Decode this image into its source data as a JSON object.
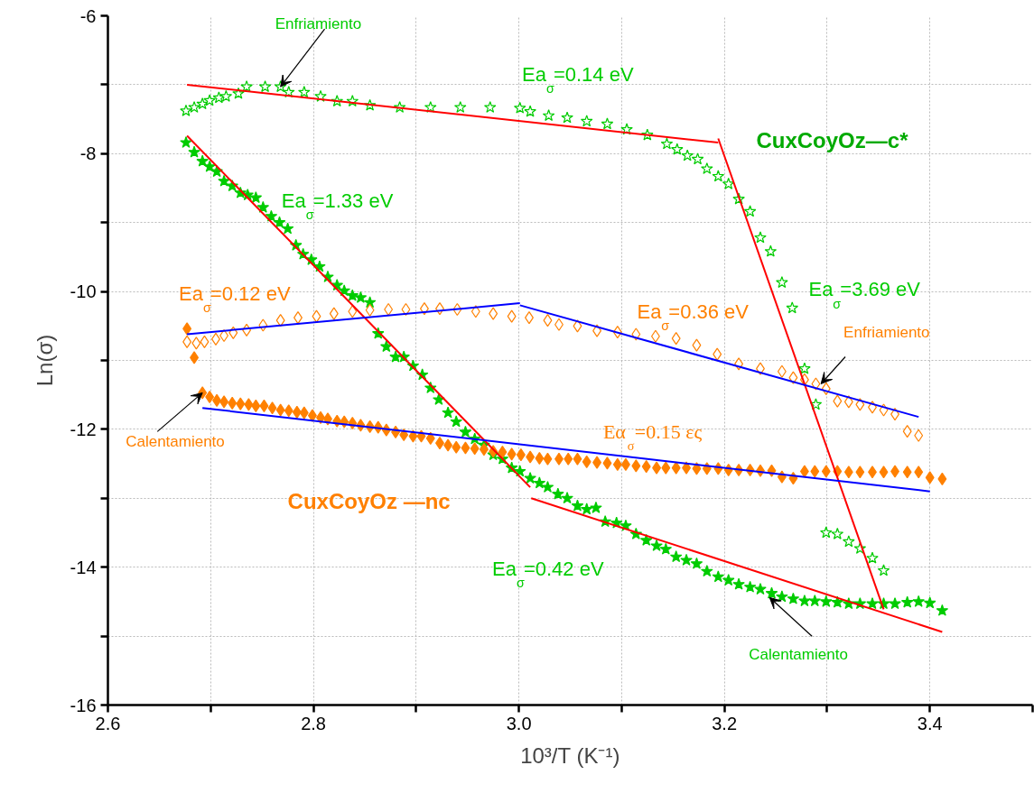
{
  "chart_data": {
    "type": "scatter",
    "xlabel": "10³/T (K⁻¹)",
    "ylabel": "Ln(σ)",
    "xlim": [
      2.6,
      3.5
    ],
    "ylim": [
      -16,
      -6
    ],
    "xticks": [
      2.6,
      {
        "value": 2.7,
        "label": null
      },
      2.8,
      {
        "value": 2.9,
        "label": null
      },
      {
        "value": 3.0,
        "label": "3.0"
      },
      {
        "value": 3.1,
        "label": null
      },
      3.2,
      {
        "value": 3.3,
        "label": null
      },
      3.4,
      {
        "value": 3.5,
        "label": null
      }
    ],
    "yticks": [
      -6,
      {
        "value": -7,
        "label": null
      },
      -8,
      {
        "value": -9,
        "label": null
      },
      -10,
      {
        "value": -11,
        "label": null
      },
      -12,
      {
        "value": -13,
        "label": null
      },
      -14,
      {
        "value": -15,
        "label": null
      },
      -16
    ],
    "grid": true,
    "series": [
      {
        "marker": "star",
        "color": "#00cc00",
        "x": [
          2.676,
          2.684,
          2.692,
          2.699,
          2.708,
          2.715,
          2.727,
          2.735,
          2.753,
          2.768,
          2.776,
          2.791,
          2.807,
          2.823,
          2.838,
          2.855,
          2.884,
          2.914,
          2.943,
          2.972,
          3.001,
          3.011,
          3.029,
          3.047,
          3.066,
          3.086,
          3.105,
          3.125,
          3.144,
          3.154,
          3.164,
          3.174,
          3.183,
          3.194,
          3.204,
          3.214,
          3.225,
          3.235,
          3.245,
          3.256,
          3.266,
          3.278,
          3.289,
          3.299,
          3.31,
          3.321,
          3.332,
          3.344,
          3.355
        ],
        "values": [
          -7.38,
          -7.33,
          -7.28,
          -7.23,
          -7.19,
          -7.17,
          -7.13,
          -7.03,
          -7.03,
          -7.03,
          -7.11,
          -7.11,
          -7.17,
          -7.24,
          -7.24,
          -7.3,
          -7.33,
          -7.33,
          -7.33,
          -7.33,
          -7.34,
          -7.39,
          -7.45,
          -7.48,
          -7.53,
          -7.57,
          -7.65,
          -7.73,
          -7.86,
          -7.94,
          -8.03,
          -8.08,
          -8.22,
          -8.33,
          -8.44,
          -8.66,
          -8.84,
          -9.22,
          -9.42,
          -9.87,
          -10.24,
          -11.12,
          -11.64,
          -13.5,
          -13.52,
          -13.63,
          -13.73,
          -13.87,
          -14.05
        ]
      },
      {
        "marker": "star",
        "color": "#00cc00",
        "x": [
          2.676,
          2.684,
          2.692,
          2.699,
          2.706,
          2.713,
          2.721,
          2.729,
          2.736,
          2.744,
          2.751,
          2.759,
          2.767,
          2.775,
          2.783,
          2.79,
          2.798,
          2.806,
          2.814,
          2.823,
          2.83,
          2.838,
          2.846,
          2.855,
          2.863,
          2.871,
          2.88,
          2.888,
          2.897,
          2.906,
          2.914,
          2.922,
          2.931,
          2.939,
          2.948,
          2.957,
          2.966,
          2.975,
          2.984,
          2.993,
          3.001,
          3.011,
          3.02,
          3.028,
          3.038,
          3.047,
          3.057,
          3.066,
          3.075,
          3.084,
          3.095,
          3.104,
          3.114,
          3.124,
          3.134,
          3.143,
          3.153,
          3.163,
          3.173,
          3.183,
          3.194,
          3.204,
          3.214,
          3.225,
          3.235,
          3.246,
          3.256,
          3.267,
          3.278,
          3.288,
          3.299,
          3.31,
          3.321,
          3.332,
          3.344,
          3.355,
          3.366,
          3.378,
          3.389,
          3.4,
          3.412
        ],
        "values": [
          -7.84,
          -7.98,
          -8.11,
          -8.19,
          -8.26,
          -8.4,
          -8.47,
          -8.57,
          -8.6,
          -8.64,
          -8.78,
          -8.91,
          -9.0,
          -9.09,
          -9.33,
          -9.46,
          -9.54,
          -9.64,
          -9.79,
          -9.91,
          -9.99,
          -10.06,
          -10.09,
          -10.16,
          -10.61,
          -10.8,
          -10.95,
          -10.95,
          -11.08,
          -11.21,
          -11.4,
          -11.57,
          -11.76,
          -11.89,
          -12.04,
          -12.14,
          -12.23,
          -12.37,
          -12.43,
          -12.56,
          -12.61,
          -12.71,
          -12.78,
          -12.84,
          -12.94,
          -13.0,
          -13.11,
          -13.16,
          -13.14,
          -13.34,
          -13.36,
          -13.4,
          -13.52,
          -13.61,
          -13.69,
          -13.74,
          -13.85,
          -13.9,
          -13.95,
          -14.06,
          -14.14,
          -14.19,
          -14.25,
          -14.29,
          -14.32,
          -14.38,
          -14.43,
          -14.46,
          -14.49,
          -14.49,
          -14.5,
          -14.51,
          -14.53,
          -14.53,
          -14.53,
          -14.53,
          -14.53,
          -14.51,
          -14.5,
          -14.52,
          -14.63
        ]
      },
      {
        "marker": "diamond",
        "color": "#ff8000",
        "x": [
          2.677,
          2.686,
          2.694,
          2.705,
          2.713,
          2.722,
          2.735,
          2.751,
          2.768,
          2.785,
          2.803,
          2.82,
          2.838,
          2.855,
          2.873,
          2.89,
          2.908,
          2.923,
          2.94,
          2.958,
          2.975,
          2.993,
          3.01,
          3.028,
          3.039,
          3.057,
          3.076,
          3.096,
          3.114,
          3.133,
          3.153,
          3.173,
          3.193,
          3.214,
          3.235,
          3.256,
          3.267,
          3.278,
          3.289,
          3.299,
          3.31,
          3.321,
          3.332,
          3.344,
          3.355,
          3.366,
          3.378,
          3.389
        ],
        "values": [
          -10.73,
          -10.75,
          -10.73,
          -10.69,
          -10.64,
          -10.6,
          -10.56,
          -10.49,
          -10.42,
          -10.38,
          -10.36,
          -10.32,
          -10.29,
          -10.27,
          -10.26,
          -10.26,
          -10.25,
          -10.25,
          -10.26,
          -10.29,
          -10.32,
          -10.36,
          -10.38,
          -10.42,
          -10.48,
          -10.5,
          -10.57,
          -10.59,
          -10.62,
          -10.65,
          -10.68,
          -10.78,
          -10.91,
          -11.05,
          -11.12,
          -11.16,
          -11.25,
          -11.28,
          -11.34,
          -11.41,
          -11.59,
          -11.6,
          -11.64,
          -11.68,
          -11.72,
          -11.78,
          -12.03,
          -12.09
        ]
      },
      {
        "marker": "diamond",
        "color": "#ff8000",
        "x": [
          2.677,
          2.684,
          2.692,
          2.699,
          2.706,
          2.713,
          2.721,
          2.729,
          2.737,
          2.744,
          2.752,
          2.76,
          2.768,
          2.776,
          2.784,
          2.791,
          2.799,
          2.807,
          2.814,
          2.823,
          2.83,
          2.838,
          2.846,
          2.855,
          2.863,
          2.871,
          2.88,
          2.888,
          2.897,
          2.905,
          2.914,
          2.923,
          2.931,
          2.939,
          2.948,
          2.957,
          2.966,
          2.975,
          2.984,
          2.993,
          3.002,
          3.011,
          3.02,
          3.028,
          3.039,
          3.048,
          3.057,
          3.066,
          3.076,
          3.086,
          3.096,
          3.104,
          3.114,
          3.124,
          3.134,
          3.143,
          3.153,
          3.163,
          3.173,
          3.183,
          3.194,
          3.204,
          3.214,
          3.225,
          3.235,
          3.246,
          3.256,
          3.267,
          3.278,
          3.288,
          3.299,
          3.31,
          3.321,
          3.332,
          3.344,
          3.355,
          3.366,
          3.378,
          3.389,
          3.4,
          3.412
        ],
        "values": [
          -10.54,
          -10.96,
          -11.47,
          -11.53,
          -11.58,
          -11.6,
          -11.62,
          -11.63,
          -11.64,
          -11.66,
          -11.66,
          -11.69,
          -11.72,
          -11.73,
          -11.75,
          -11.76,
          -11.8,
          -11.83,
          -11.85,
          -11.88,
          -11.89,
          -11.91,
          -11.94,
          -11.96,
          -11.97,
          -12.01,
          -12.04,
          -12.08,
          -12.1,
          -12.1,
          -12.13,
          -12.2,
          -12.23,
          -12.26,
          -12.27,
          -12.28,
          -12.29,
          -12.32,
          -12.33,
          -12.36,
          -12.37,
          -12.4,
          -12.42,
          -12.43,
          -12.43,
          -12.43,
          -12.43,
          -12.47,
          -12.48,
          -12.49,
          -12.51,
          -12.51,
          -12.53,
          -12.54,
          -12.56,
          -12.56,
          -12.56,
          -12.56,
          -12.57,
          -12.57,
          -12.57,
          -12.59,
          -12.59,
          -12.59,
          -12.6,
          -12.6,
          -12.69,
          -12.71,
          -12.61,
          -12.61,
          -12.61,
          -12.61,
          -12.62,
          -12.62,
          -12.62,
          -12.62,
          -12.61,
          -12.62,
          -12.62,
          -12.7,
          -12.72
        ]
      },
      {
        "type": "line",
        "color": "#ff0000",
        "x": [
          2.677,
          3.194
        ],
        "values": [
          -7.0,
          -7.84
        ]
      },
      {
        "type": "line",
        "color": "#ff0000",
        "x": [
          3.194,
          3.355
        ],
        "values": [
          -7.78,
          -14.61
        ]
      },
      {
        "type": "line",
        "color": "#ff0000",
        "x": [
          2.677,
          3.011
        ],
        "values": [
          -7.74,
          -12.84
        ]
      },
      {
        "type": "line",
        "color": "#ff0000",
        "x": [
          3.012,
          3.412
        ],
        "values": [
          -13.0,
          -14.94
        ]
      },
      {
        "type": "line",
        "color": "#0000ff",
        "x": [
          2.677,
          3.001
        ],
        "values": [
          -10.62,
          -10.17
        ]
      },
      {
        "type": "line",
        "color": "#0000ff",
        "x": [
          3.001,
          3.389
        ],
        "values": [
          -10.2,
          -11.82
        ]
      },
      {
        "type": "line",
        "color": "#0000ff",
        "x": [
          2.692,
          3.4
        ],
        "values": [
          -11.69,
          -12.9
        ]
      }
    ],
    "annotations": [
      {
        "text": "Enfriamiento",
        "x": 2.768,
        "y": -7.03
      },
      "Ea$_{σ}$=0.14 eV",
      "CuxCoyOz—c*",
      "Ea$_{σ}$=1.33 eV",
      "Ea$_{σ}$=0.12 eV",
      "Ea$_{σ}$=3.69 eV",
      "Ea$_{σ}$=0.36 eV",
      {
        "text": "Enfriamiento",
        "x": 3.294,
        "y": -11.34
      },
      "Eα$_{σ}$=0.15 ες",
      {
        "text": "Calentamiento",
        "x": 2.692,
        "y": -11.47
      },
      "CuxCoyOz —nc",
      "Ea$_{σ}$=0.42 eV",
      {
        "text": "Calentamiento",
        "x": 3.244,
        "y": -14.44
      }
    ]
  }
}
